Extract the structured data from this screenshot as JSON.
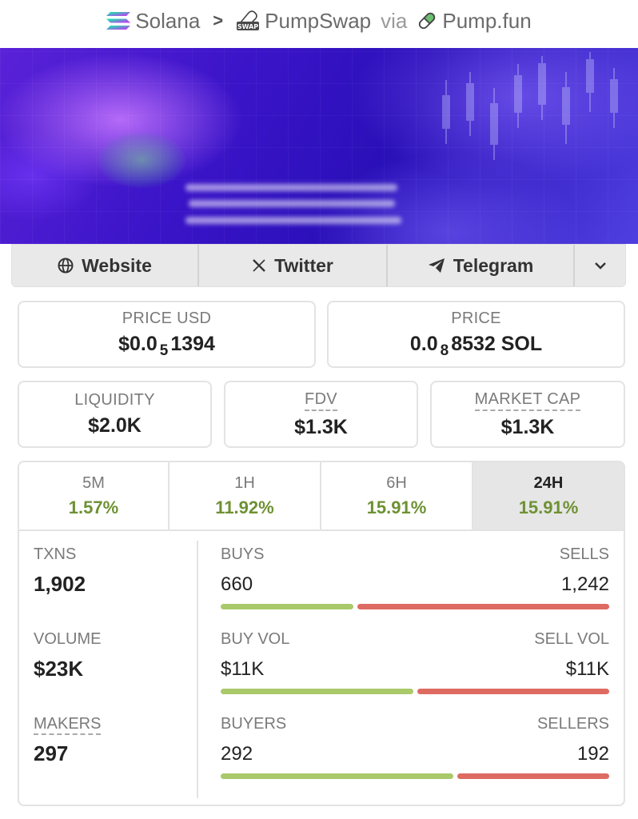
{
  "breadcrumb": {
    "chain": "Solana",
    "separator": ">",
    "dex": "PumpSwap",
    "dex_icon_text": "SWAP",
    "via": "via",
    "launchpad": "Pump.fun"
  },
  "links": {
    "website": "Website",
    "twitter": "Twitter",
    "telegram": "Telegram"
  },
  "price_usd": {
    "label": "PRICE USD",
    "prefix": "$0.0",
    "zeros": "5",
    "digits": "1394"
  },
  "price_native": {
    "label": "PRICE",
    "prefix": "0.0",
    "zeros": "8",
    "digits": "8532 SOL"
  },
  "liquidity": {
    "label": "LIQUIDITY",
    "value": "$2.0K"
  },
  "fdv": {
    "label": "FDV",
    "value": "$1.3K"
  },
  "market_cap": {
    "label": "MARKET CAP",
    "value": "$1.3K"
  },
  "timeframes": [
    {
      "label": "5M",
      "change": "1.57%"
    },
    {
      "label": "1H",
      "change": "11.92%"
    },
    {
      "label": "6H",
      "change": "15.91%"
    },
    {
      "label": "24H",
      "change": "15.91%",
      "active": true
    }
  ],
  "txns": {
    "label": "TXNS",
    "value": "1,902"
  },
  "volume": {
    "label": "VOLUME",
    "value": "$23K"
  },
  "makers": {
    "label": "MAKERS",
    "value": "297"
  },
  "buys_sells": {
    "left_label": "BUYS",
    "left_value": "660",
    "right_label": "SELLS",
    "right_value": "1,242",
    "buy_fraction": 0.347
  },
  "buyvol_sellvol": {
    "left_label": "BUY VOL",
    "left_value": "$11K",
    "right_label": "SELL VOL",
    "right_value": "$11K",
    "buy_fraction": 0.5
  },
  "buyers_sellers": {
    "left_label": "BUYERS",
    "left_value": "292",
    "right_label": "SELLERS",
    "right_value": "192",
    "buy_fraction": 0.603
  },
  "colors": {
    "positive": "#6e9133",
    "buy_bar": "#a9c96a",
    "sell_bar": "#de6b62"
  }
}
